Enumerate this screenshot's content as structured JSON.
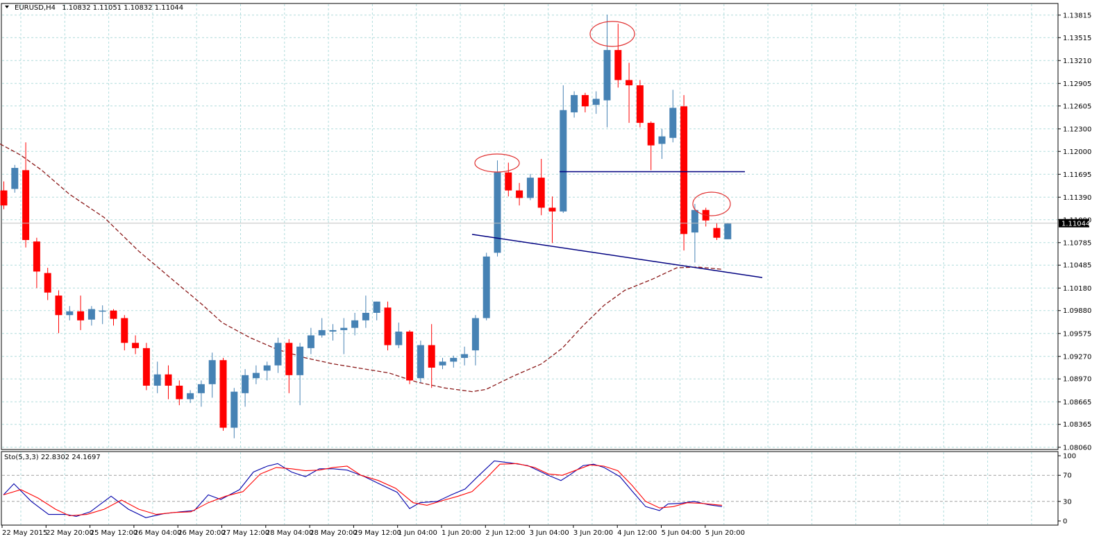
{
  "header": {
    "symbol": "EURUSD,H4",
    "ohlc": "1.10832 1.11051 1.10832 1.11044"
  },
  "indicator": {
    "label": "Sto(5,3,3) 22.8302 24.1697"
  },
  "colors": {
    "bull": "#4682b4",
    "bear": "#ff0000",
    "grid": "#b0dcdc",
    "ma": "#8b1a1a",
    "annotation_line": "#000080",
    "annotation_circle": "#e03030",
    "stoch_main": "#0000aa",
    "stoch_signal": "#ff0000"
  },
  "chart_data": [
    {
      "type": "candlestick",
      "price_axis": {
        "ticks": [
          "1.13815",
          "1.13515",
          "1.13210",
          "1.12905",
          "1.12605",
          "1.12300",
          "1.12000",
          "1.11695",
          "1.11390",
          "1.11090",
          "1.10785",
          "1.10485",
          "1.10180",
          "1.09880",
          "1.09575",
          "1.09270",
          "1.08970",
          "1.08665",
          "1.08365",
          "1.08060"
        ],
        "current_price": "1.11044",
        "ylim": [
          1.0803,
          1.1397
        ]
      },
      "time_axis": {
        "labels": [
          "22 May 2015",
          "22 May 20:00",
          "25 May 12:00",
          "26 May 04:00",
          "26 May 20:00",
          "27 May 12:00",
          "28 May 04:00",
          "28 May 20:00",
          "29 May 12:00",
          "1 Jun 04:00",
          "1 Jun 20:00",
          "2 Jun 12:00",
          "3 Jun 04:00",
          "3 Jun 20:00",
          "4 Jun 12:00",
          "5 Jun 04:00",
          "5 Jun 20:00"
        ]
      },
      "candles": [
        [
          1.1148,
          1.116,
          1.1123,
          1.1128
        ],
        [
          1.115,
          1.1182,
          1.1145,
          1.1178
        ],
        [
          1.1175,
          1.1212,
          1.1072,
          1.1082
        ],
        [
          1.108,
          1.1085,
          1.1018,
          1.104
        ],
        [
          1.1038,
          1.1045,
          1.1002,
          1.1012
        ],
        [
          1.1008,
          1.1015,
          1.0958,
          1.0982
        ],
        [
          1.0982,
          1.0994,
          1.0975,
          1.0987
        ],
        [
          1.0987,
          1.1008,
          1.0962,
          1.0975
        ],
        [
          1.0976,
          1.0994,
          1.0968,
          1.099
        ],
        [
          1.0988,
          1.0995,
          1.097,
          1.0988
        ],
        [
          1.0988,
          1.099,
          1.0968,
          1.0977
        ],
        [
          1.0978,
          1.0982,
          1.0935,
          1.0945
        ],
        [
          1.0945,
          1.0955,
          1.093,
          1.0938
        ],
        [
          1.0938,
          1.0945,
          1.0882,
          1.0888
        ],
        [
          1.0888,
          1.092,
          1.0878,
          1.0903
        ],
        [
          1.0903,
          1.0915,
          1.087,
          1.0888
        ],
        [
          1.0888,
          1.0895,
          1.0862,
          1.087
        ],
        [
          1.087,
          1.0882,
          1.0865,
          1.0878
        ],
        [
          1.0878,
          1.0895,
          1.086,
          1.089
        ],
        [
          1.089,
          1.0932,
          1.0872,
          1.0922
        ],
        [
          1.0922,
          1.0925,
          1.0828,
          1.0832
        ],
        [
          1.0832,
          1.0885,
          1.0818,
          1.088
        ],
        [
          1.0878,
          1.091,
          1.086,
          1.0902
        ],
        [
          1.0898,
          1.0915,
          1.089,
          1.0905
        ],
        [
          1.0908,
          1.092,
          1.0895,
          1.0915
        ],
        [
          1.0915,
          1.0952,
          1.0905,
          1.0945
        ],
        [
          1.0945,
          1.095,
          1.0878,
          1.0902
        ],
        [
          1.0902,
          1.0945,
          1.0862,
          1.094
        ],
        [
          1.0938,
          1.0965,
          1.093,
          1.0955
        ],
        [
          1.0955,
          1.0978,
          1.0952,
          1.0962
        ],
        [
          1.096,
          1.097,
          1.0948,
          1.0962
        ],
        [
          1.0962,
          1.0978,
          1.093,
          1.0965
        ],
        [
          1.0965,
          1.0985,
          1.0955,
          1.0975
        ],
        [
          1.0975,
          1.1008,
          1.0965,
          1.0985
        ],
        [
          1.0985,
          1.1,
          1.0975,
          1.1
        ],
        [
          1.0992,
          1.1,
          1.0935,
          1.0942
        ],
        [
          1.0942,
          1.0972,
          1.0938,
          1.096
        ],
        [
          1.096,
          1.0962,
          1.089,
          1.0895
        ],
        [
          1.0898,
          1.0948,
          1.0892,
          1.0942
        ],
        [
          1.0942,
          1.097,
          1.0885,
          1.0912
        ],
        [
          1.0915,
          1.0925,
          1.091,
          1.092
        ],
        [
          1.092,
          1.0928,
          1.0912,
          1.0925
        ],
        [
          1.0925,
          1.094,
          1.0915,
          1.093
        ],
        [
          1.0935,
          1.0982,
          1.0915,
          1.0978
        ],
        [
          1.0978,
          1.1065,
          1.0975,
          1.106
        ],
        [
          1.1065,
          1.1188,
          1.106,
          1.1172
        ],
        [
          1.1172,
          1.1185,
          1.114,
          1.1148
        ],
        [
          1.1148,
          1.1158,
          1.1128,
          1.1138
        ],
        [
          1.1138,
          1.117,
          1.1135,
          1.1165
        ],
        [
          1.1165,
          1.119,
          1.1115,
          1.1125
        ],
        [
          1.1125,
          1.114,
          1.1078,
          1.112
        ],
        [
          1.112,
          1.1288,
          1.1118,
          1.1255
        ],
        [
          1.1252,
          1.128,
          1.1245,
          1.1275
        ],
        [
          1.1275,
          1.1278,
          1.1252,
          1.126
        ],
        [
          1.1262,
          1.128,
          1.125,
          1.127
        ],
        [
          1.1268,
          1.1382,
          1.1232,
          1.1335
        ],
        [
          1.1335,
          1.137,
          1.1285,
          1.1295
        ],
        [
          1.1295,
          1.1318,
          1.1238,
          1.1288
        ],
        [
          1.1288,
          1.1295,
          1.1232,
          1.1238
        ],
        [
          1.1238,
          1.124,
          1.1175,
          1.1208
        ],
        [
          1.121,
          1.123,
          1.119,
          1.122
        ],
        [
          1.1218,
          1.1282,
          1.1212,
          1.1258
        ],
        [
          1.126,
          1.1275,
          1.1068,
          1.109
        ],
        [
          1.1092,
          1.113,
          1.1052,
          1.1122
        ],
        [
          1.1122,
          1.1125,
          1.11,
          1.1108
        ],
        [
          1.1098,
          1.1105,
          1.1082,
          1.1085
        ],
        [
          1.1083,
          1.1105,
          1.1083,
          1.1104
        ]
      ],
      "moving_average": [
        [
          0,
          1.121
        ],
        [
          30,
          1.1195
        ],
        [
          60,
          1.1175
        ],
        [
          100,
          1.1143
        ],
        [
          150,
          1.1112
        ],
        [
          200,
          1.1067
        ],
        [
          250,
          1.1028
        ],
        [
          290,
          1.0997
        ],
        [
          320,
          1.0972
        ],
        [
          360,
          1.0952
        ],
        [
          400,
          1.0936
        ],
        [
          440,
          1.0925
        ],
        [
          480,
          1.0917
        ],
        [
          520,
          1.0911
        ],
        [
          560,
          1.0905
        ],
        [
          600,
          1.0893
        ],
        [
          640,
          1.0885
        ],
        [
          680,
          1.088
        ],
        [
          700,
          1.0883
        ],
        [
          740,
          1.0901
        ],
        [
          780,
          1.0917
        ],
        [
          810,
          1.0938
        ],
        [
          840,
          1.0968
        ],
        [
          870,
          1.0995
        ],
        [
          900,
          1.1015
        ],
        [
          940,
          1.103
        ],
        [
          975,
          1.1045
        ],
        [
          1005,
          1.1046
        ],
        [
          1040,
          1.1043
        ]
      ],
      "lines": [
        {
          "from": [
            806,
            1.1173
          ],
          "to": [
            1073,
            1.1173
          ]
        },
        {
          "from": [
            680,
            1.10895
          ],
          "to": [
            1098,
            1.1032
          ]
        }
      ],
      "circles": [
        {
          "cx": 716,
          "price": 1.11845,
          "rx": 32,
          "ry": 13
        },
        {
          "cx": 882,
          "price": 1.13565,
          "rx": 32,
          "ry": 18
        },
        {
          "cx": 1025,
          "price": 1.113,
          "rx": 27,
          "ry": 17
        }
      ]
    },
    {
      "type": "line",
      "name": "Sto(5,3,3)",
      "ylim": [
        0,
        100
      ],
      "y_ticks": [
        "100",
        "70",
        "30",
        "0"
      ],
      "levels": [
        30,
        70
      ],
      "series": [
        {
          "name": "main",
          "points": [
            [
              5,
              40
            ],
            [
              20,
              57
            ],
            [
              45,
              30
            ],
            [
              70,
              10
            ],
            [
              95,
              10
            ],
            [
              110,
              7
            ],
            [
              130,
              14
            ],
            [
              160,
              38
            ],
            [
              185,
              18
            ],
            [
              210,
              5
            ],
            [
              235,
              11
            ],
            [
              260,
              14
            ],
            [
              280,
              16
            ],
            [
              300,
              40
            ],
            [
              318,
              33
            ],
            [
              345,
              48
            ],
            [
              365,
              75
            ],
            [
              385,
              84
            ],
            [
              400,
              88
            ],
            [
              420,
              75
            ],
            [
              440,
              68
            ],
            [
              460,
              80
            ],
            [
              480,
              80
            ],
            [
              500,
              78
            ],
            [
              525,
              68
            ],
            [
              550,
              55
            ],
            [
              572,
              44
            ],
            [
              590,
              19
            ],
            [
              605,
              28
            ],
            [
              630,
              30
            ],
            [
              650,
              40
            ],
            [
              670,
              49
            ],
            [
              690,
              70
            ],
            [
              712,
              92
            ],
            [
              735,
              89
            ],
            [
              760,
              85
            ],
            [
              790,
              70
            ],
            [
              808,
              62
            ],
            [
              820,
              70
            ],
            [
              840,
              85
            ],
            [
              855,
              87
            ],
            [
              870,
              82
            ],
            [
              893,
              68
            ],
            [
              912,
              44
            ],
            [
              930,
              22
            ],
            [
              950,
              16
            ],
            [
              962,
              26
            ],
            [
              980,
              27
            ],
            [
              1000,
              30
            ],
            [
              1020,
              25
            ],
            [
              1040,
              22
            ]
          ]
        },
        {
          "name": "signal",
          "points": [
            [
              5,
              40
            ],
            [
              30,
              48
            ],
            [
              55,
              35
            ],
            [
              80,
              18
            ],
            [
              100,
              8
            ],
            [
              125,
              10
            ],
            [
              150,
              18
            ],
            [
              175,
              32
            ],
            [
              200,
              18
            ],
            [
              225,
              10
            ],
            [
              250,
              13
            ],
            [
              275,
              14
            ],
            [
              300,
              28
            ],
            [
              325,
              38
            ],
            [
              350,
              45
            ],
            [
              375,
              72
            ],
            [
              398,
              82
            ],
            [
              420,
              80
            ],
            [
              440,
              77
            ],
            [
              460,
              78
            ],
            [
              480,
              82
            ],
            [
              500,
              84
            ],
            [
              520,
              70
            ],
            [
              545,
              62
            ],
            [
              570,
              50
            ],
            [
              595,
              28
            ],
            [
              615,
              24
            ],
            [
              640,
              32
            ],
            [
              660,
              38
            ],
            [
              680,
              45
            ],
            [
              700,
              65
            ],
            [
              720,
              87
            ],
            [
              745,
              88
            ],
            [
              770,
              82
            ],
            [
              790,
              72
            ],
            [
              810,
              70
            ],
            [
              830,
              78
            ],
            [
              850,
              86
            ],
            [
              870,
              84
            ],
            [
              890,
              77
            ],
            [
              910,
              55
            ],
            [
              930,
              30
            ],
            [
              950,
              20
            ],
            [
              970,
              22
            ],
            [
              990,
              28
            ],
            [
              1010,
              27
            ],
            [
              1040,
              24
            ]
          ]
        }
      ]
    }
  ]
}
